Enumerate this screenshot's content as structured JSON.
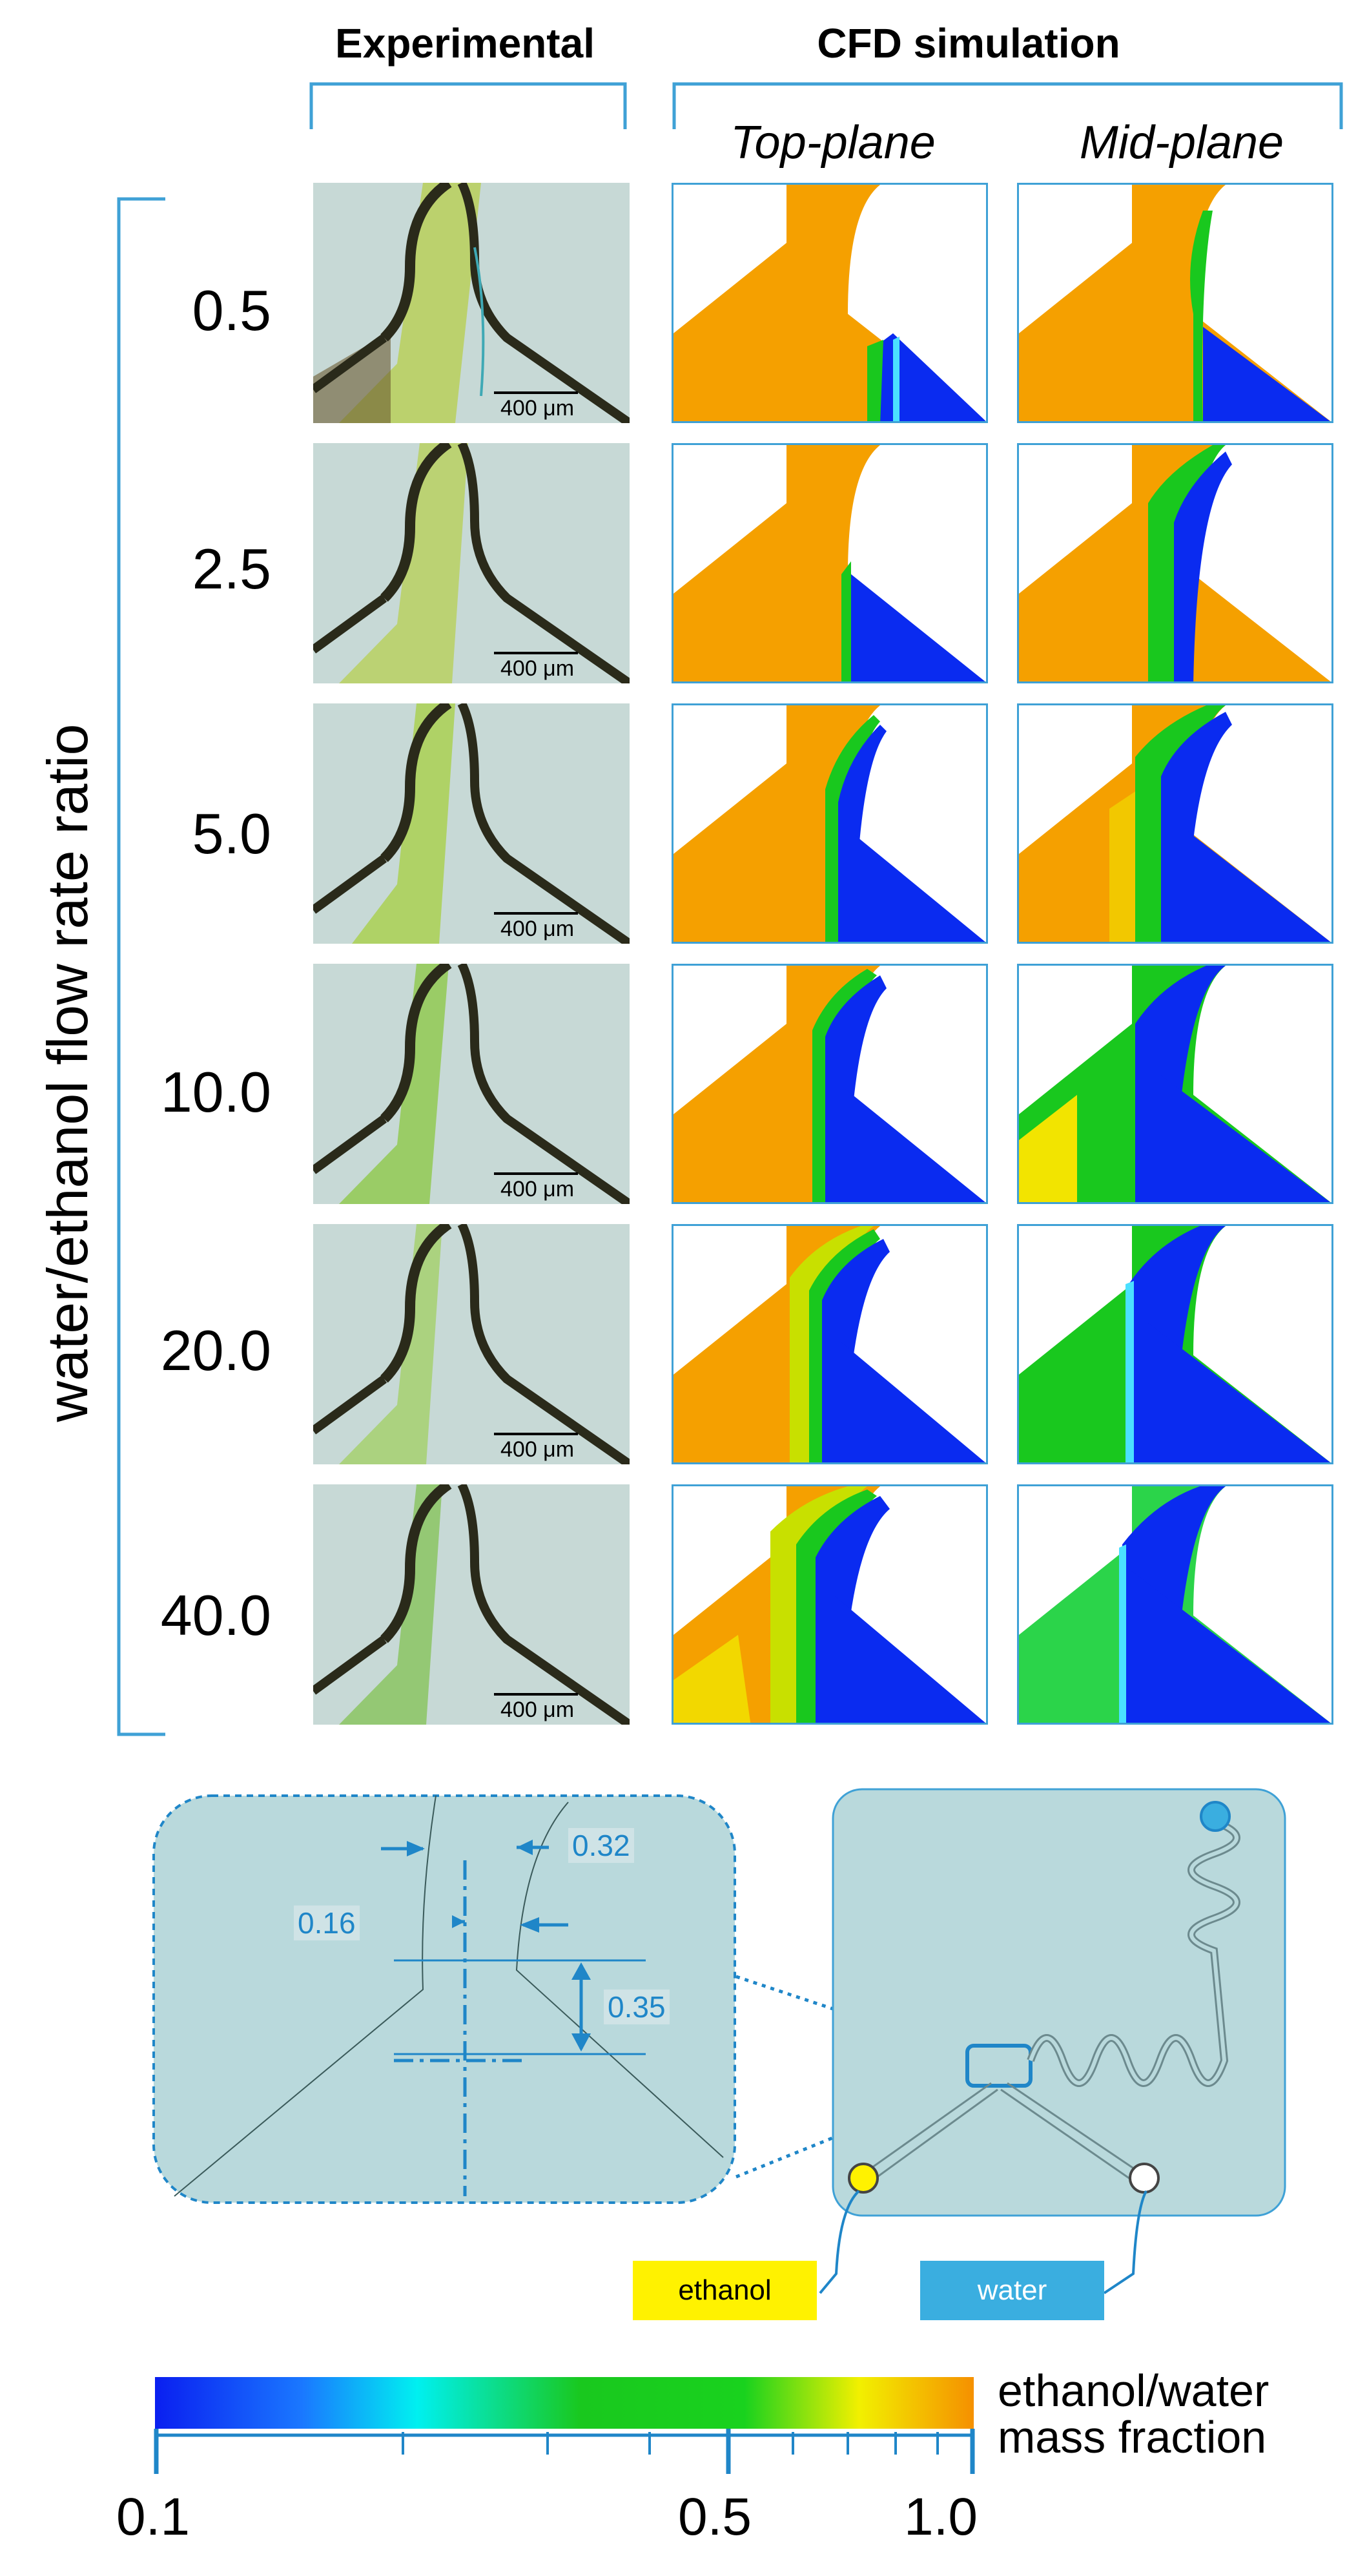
{
  "headers": {
    "experimental": "Experimental",
    "cfd": "CFD simulation",
    "top_plane": "Top-plane",
    "mid_plane": "Mid-plane"
  },
  "y_axis_label": "water/ethanol flow rate ratio",
  "ratios": [
    "0.5",
    "2.5",
    "5.0",
    "10.0",
    "20.0",
    "40.0"
  ],
  "scale_bar_label": "400 μm",
  "dimensions": {
    "left_gap": "0.16",
    "right_gap": "0.32",
    "height": "0.35"
  },
  "inlets": {
    "ethanol": "ethanol",
    "water": "water"
  },
  "colorbar": {
    "title_line1": "ethanol/water",
    "title_line2": "mass fraction",
    "tick_min": "0.1",
    "tick_mid": "0.5",
    "tick_max": "1.0",
    "scale": "log"
  },
  "colors": {
    "accent": "#3fa1d6",
    "ethanol": "#f5a000",
    "water": "#0a2bf0",
    "mixing": "#19c81e",
    "ethanol_tag": "#fff200",
    "water_tag": "#3aaee0",
    "chip": "#b9d9dc"
  }
}
